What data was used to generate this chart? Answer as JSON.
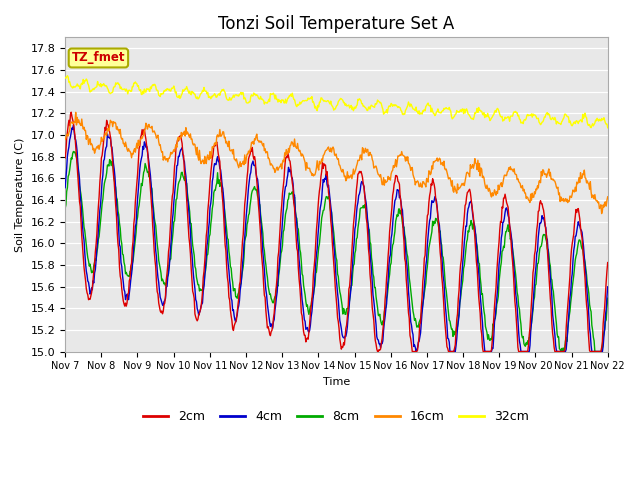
{
  "title": "Tonzi Soil Temperature Set A",
  "ylabel": "Soil Temperature (C)",
  "xlabel": "Time",
  "ylim": [
    15.0,
    17.9
  ],
  "xtick_labels": [
    "Nov 7",
    "Nov 8",
    "Nov 9",
    "Nov 10",
    "Nov 11",
    "Nov 12",
    "Nov 13",
    "Nov 14",
    "Nov 15",
    "Nov 16",
    "Nov 17",
    "Nov 18",
    "Nov 19",
    "Nov 20",
    "Nov 21",
    "Nov 22"
  ],
  "colors": {
    "2cm": "#dd0000",
    "4cm": "#0000cc",
    "8cm": "#00aa00",
    "16cm": "#ff8800",
    "32cm": "#ffff00"
  },
  "legend_labels": [
    "2cm",
    "4cm",
    "8cm",
    "16cm",
    "32cm"
  ],
  "annotation_label": "TZ_fmet",
  "annotation_color": "#cc0000",
  "annotation_bg": "#ffff99",
  "annotation_border": "#aaaa00",
  "background_color": "#e8e8e8",
  "title_fontsize": 12,
  "axis_fontsize": 8,
  "legend_fontsize": 9,
  "figsize": [
    6.4,
    4.8
  ],
  "dpi": 100
}
